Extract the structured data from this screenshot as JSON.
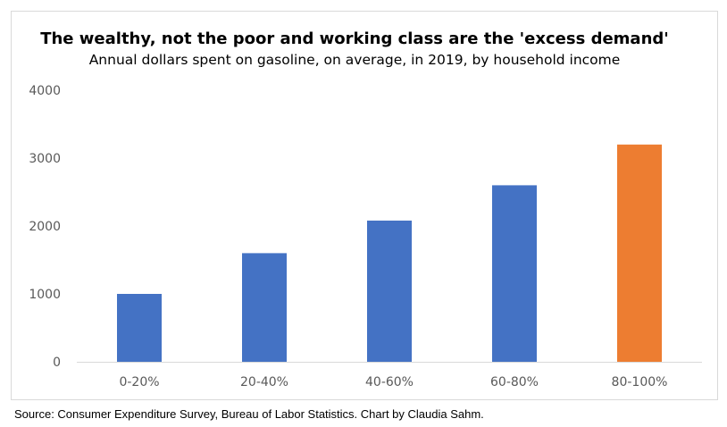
{
  "chart_data": {
    "type": "bar",
    "title": "The wealthy, not the poor and working class are the 'excess demand'",
    "subtitle": "Annual dollars spent on gasoline, on average, in 2019, by household income",
    "xlabel": "",
    "ylabel": "",
    "categories": [
      "0-20%",
      "20-40%",
      "40-60%",
      "60-80%",
      "80-100%"
    ],
    "values": [
      1000,
      1600,
      2080,
      2600,
      3200
    ],
    "ylim": [
      0,
      4000
    ],
    "yticks": [
      "0",
      "1000",
      "2000",
      "3000",
      "4000"
    ],
    "bar_colors": [
      "#4472c4",
      "#4472c4",
      "#4472c4",
      "#4472c4",
      "#ed7d31"
    ],
    "grid": false,
    "legend": "none"
  },
  "source": "Source: Consumer Expenditure Survey, Bureau of Labor Statistics. Chart by Claudia Sahm."
}
